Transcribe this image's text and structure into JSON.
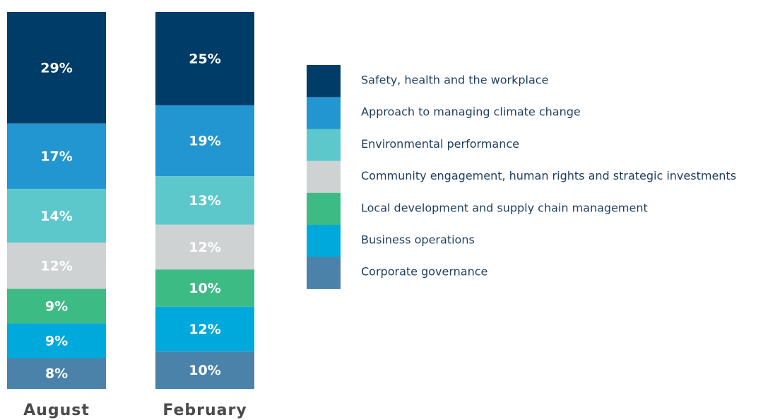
{
  "chart_data": {
    "type": "bar",
    "stacked": true,
    "categories": [
      "August",
      "February"
    ],
    "series": [
      {
        "name": "Safety, health and the workplace",
        "color": "#003c68",
        "values": [
          29,
          25
        ],
        "value_labels": [
          "29%",
          "25%"
        ]
      },
      {
        "name": "Approach to managing climate change",
        "color": "#2196d0",
        "values": [
          17,
          19
        ],
        "value_labels": [
          "17%",
          "19%"
        ]
      },
      {
        "name": "Environmental performance",
        "color": "#5cc8cc",
        "values": [
          14,
          13
        ],
        "value_labels": [
          "14%",
          "13%"
        ]
      },
      {
        "name": "Community engagement, human rights and strategic investments",
        "color": "#cfd2d3",
        "values": [
          12,
          12
        ],
        "value_labels": [
          "12%",
          "12%"
        ]
      },
      {
        "name": "Local development and supply chain management",
        "color": "#3dbb85",
        "values": [
          9,
          10
        ],
        "value_labels": [
          "9%",
          "10%"
        ]
      },
      {
        "name": "Business operations",
        "color": "#00a9dc",
        "values": [
          9,
          12
        ],
        "value_labels": [
          "9%",
          "12%"
        ]
      },
      {
        "name": "Corporate governance",
        "color": "#4a82aa",
        "values": [
          8,
          10
        ],
        "value_labels": [
          "8%",
          "10%"
        ]
      }
    ]
  }
}
